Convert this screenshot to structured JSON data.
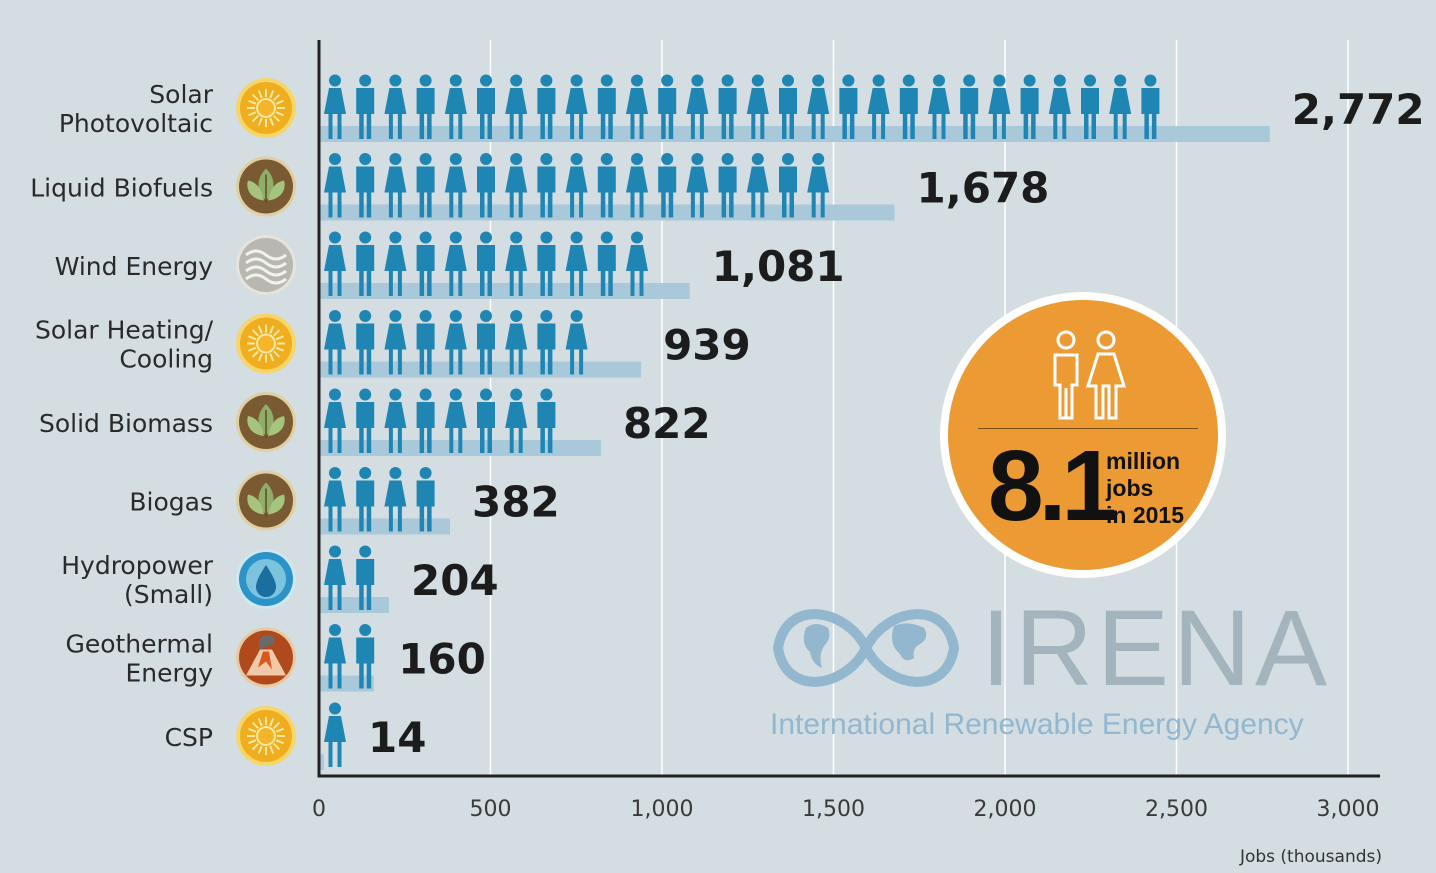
{
  "chart_data": {
    "type": "bar",
    "orientation": "horizontal",
    "categories": [
      "Solar Photovoltaic",
      "Liquid Biofuels",
      "Wind Energy",
      "Solar Heating/ Cooling",
      "Solid Biomass",
      "Biogas",
      "Hydropower (Small)",
      "Geothermal Energy",
      "CSP"
    ],
    "category_lines": [
      [
        "Solar",
        "Photovoltaic"
      ],
      [
        "Liquid Biofuels"
      ],
      [
        "Wind Energy"
      ],
      [
        "Solar Heating/",
        "Cooling"
      ],
      [
        "Solid Biomass"
      ],
      [
        "Biogas"
      ],
      [
        "Hydropower",
        "(Small)"
      ],
      [
        "Geothermal",
        "Energy"
      ],
      [
        "CSP"
      ]
    ],
    "values": [
      2772,
      1678,
      1081,
      939,
      822,
      382,
      204,
      160,
      14
    ],
    "value_labels": [
      "2,772",
      "1,678",
      "1,081",
      "939",
      "822",
      "382",
      "204",
      "160",
      "14"
    ],
    "category_icons": [
      "sun-icon",
      "leaf-icon",
      "wind-icon",
      "sun-icon",
      "leaf-icon",
      "leaf-icon",
      "water-drop-icon",
      "volcano-icon",
      "sun-icon"
    ],
    "xlim": [
      0,
      3000
    ],
    "xticks": [
      0,
      500,
      1000,
      1500,
      2000,
      2500,
      3000
    ],
    "xtick_labels": [
      "0",
      "500",
      "1,000",
      "1,500",
      "2,000",
      "2,500",
      "3,000"
    ],
    "xlabel": "Jobs (thousands)",
    "ylabel": "",
    "grid": true,
    "colors": {
      "person": "#1f86b4",
      "bar": "#a9c9da",
      "grid": "#ffffff",
      "axis": "#222222",
      "sun": "#f0ad1e",
      "leaf": "#7a5a33",
      "wind": "#b8b8b0",
      "water": "#2b93c7",
      "volcano": "#b04a1c"
    }
  },
  "badge": {
    "number": "8.1",
    "line1": "million",
    "line2": "jobs",
    "line3": "in 2015",
    "icon": "man-woman-icon",
    "color": "#ec9b34"
  },
  "logo": {
    "name": "IRENA",
    "tagline": "International Renewable Energy Agency",
    "icon": "infinity-globe-icon"
  }
}
